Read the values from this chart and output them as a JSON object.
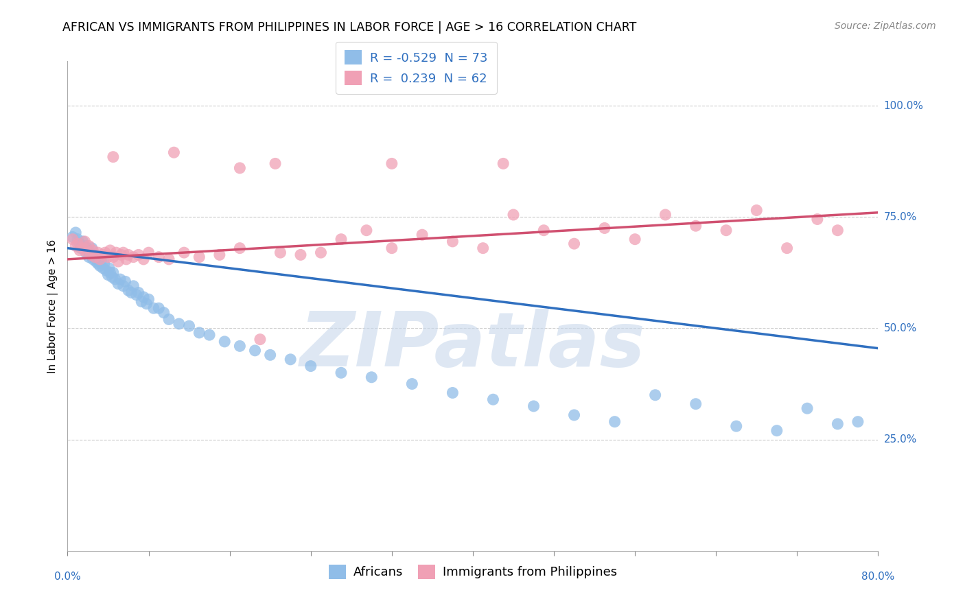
{
  "title": "AFRICAN VS IMMIGRANTS FROM PHILIPPINES IN LABOR FORCE | AGE > 16 CORRELATION CHART",
  "source": "Source: ZipAtlas.com",
  "ylabel": "In Labor Force | Age > 16",
  "x_left_label": "0.0%",
  "x_right_label": "80.0%",
  "y_ticks_labels": [
    "25.0%",
    "50.0%",
    "75.0%",
    "100.0%"
  ],
  "y_tick_vals": [
    0.25,
    0.5,
    0.75,
    1.0
  ],
  "x_min": 0.0,
  "x_max": 0.8,
  "y_min": 0.0,
  "y_max": 1.1,
  "r_blue": "-0.529",
  "n_blue": "73",
  "r_pink": "0.239",
  "n_pink": "62",
  "blue_scatter_color": "#90BDE8",
  "pink_scatter_color": "#F0A0B5",
  "blue_line_color": "#3070C0",
  "pink_line_color": "#D05070",
  "watermark_color": "#C8D8EC",
  "watermark_text": "ZIPatlas",
  "title_fontsize": 12.5,
  "source_fontsize": 10,
  "tick_label_fontsize": 11,
  "legend_fontsize": 13,
  "ylabel_fontsize": 11,
  "blue_x": [
    0.005,
    0.008,
    0.01,
    0.012,
    0.013,
    0.015,
    0.017,
    0.018,
    0.019,
    0.02,
    0.021,
    0.022,
    0.023,
    0.024,
    0.025,
    0.026,
    0.027,
    0.028,
    0.03,
    0.031,
    0.032,
    0.033,
    0.035,
    0.036,
    0.038,
    0.04,
    0.041,
    0.042,
    0.044,
    0.045,
    0.047,
    0.05,
    0.052,
    0.055,
    0.057,
    0.06,
    0.063,
    0.065,
    0.068,
    0.07,
    0.073,
    0.075,
    0.078,
    0.08,
    0.085,
    0.09,
    0.095,
    0.1,
    0.11,
    0.12,
    0.13,
    0.14,
    0.155,
    0.17,
    0.185,
    0.2,
    0.22,
    0.24,
    0.27,
    0.3,
    0.34,
    0.38,
    0.42,
    0.46,
    0.5,
    0.54,
    0.58,
    0.62,
    0.66,
    0.7,
    0.73,
    0.76,
    0.78
  ],
  "blue_y": [
    0.705,
    0.715,
    0.7,
    0.69,
    0.68,
    0.695,
    0.685,
    0.67,
    0.68,
    0.675,
    0.66,
    0.67,
    0.665,
    0.68,
    0.655,
    0.665,
    0.66,
    0.65,
    0.645,
    0.655,
    0.64,
    0.65,
    0.635,
    0.645,
    0.63,
    0.62,
    0.635,
    0.625,
    0.615,
    0.625,
    0.61,
    0.6,
    0.61,
    0.595,
    0.605,
    0.585,
    0.58,
    0.595,
    0.575,
    0.58,
    0.56,
    0.57,
    0.555,
    0.565,
    0.545,
    0.545,
    0.535,
    0.52,
    0.51,
    0.505,
    0.49,
    0.485,
    0.47,
    0.46,
    0.45,
    0.44,
    0.43,
    0.415,
    0.4,
    0.39,
    0.375,
    0.355,
    0.34,
    0.325,
    0.305,
    0.29,
    0.35,
    0.33,
    0.28,
    0.27,
    0.32,
    0.285,
    0.29
  ],
  "pink_x": [
    0.005,
    0.008,
    0.01,
    0.012,
    0.015,
    0.017,
    0.019,
    0.021,
    0.023,
    0.025,
    0.027,
    0.03,
    0.032,
    0.035,
    0.037,
    0.04,
    0.042,
    0.045,
    0.048,
    0.05,
    0.053,
    0.055,
    0.058,
    0.06,
    0.065,
    0.07,
    0.075,
    0.08,
    0.09,
    0.1,
    0.115,
    0.13,
    0.15,
    0.17,
    0.19,
    0.21,
    0.23,
    0.25,
    0.27,
    0.295,
    0.32,
    0.35,
    0.38,
    0.41,
    0.44,
    0.47,
    0.5,
    0.53,
    0.56,
    0.59,
    0.62,
    0.65,
    0.68,
    0.71,
    0.74,
    0.76,
    0.205,
    0.105,
    0.32,
    0.43,
    0.17,
    0.045
  ],
  "pink_y": [
    0.7,
    0.685,
    0.69,
    0.675,
    0.68,
    0.695,
    0.67,
    0.685,
    0.665,
    0.675,
    0.66,
    0.67,
    0.655,
    0.665,
    0.67,
    0.66,
    0.675,
    0.66,
    0.67,
    0.65,
    0.665,
    0.67,
    0.655,
    0.665,
    0.66,
    0.665,
    0.655,
    0.67,
    0.66,
    0.655,
    0.67,
    0.66,
    0.665,
    0.68,
    0.475,
    0.67,
    0.665,
    0.67,
    0.7,
    0.72,
    0.68,
    0.71,
    0.695,
    0.68,
    0.755,
    0.72,
    0.69,
    0.725,
    0.7,
    0.755,
    0.73,
    0.72,
    0.765,
    0.68,
    0.745,
    0.72,
    0.87,
    0.895,
    0.87,
    0.87,
    0.86,
    0.885
  ],
  "blue_trend_x0": 0.0,
  "blue_trend_x1": 0.8,
  "blue_trend_y0": 0.68,
  "blue_trend_y1": 0.455,
  "pink_trend_x0": 0.0,
  "pink_trend_x1": 0.8,
  "pink_trend_y0": 0.655,
  "pink_trend_y1": 0.76
}
